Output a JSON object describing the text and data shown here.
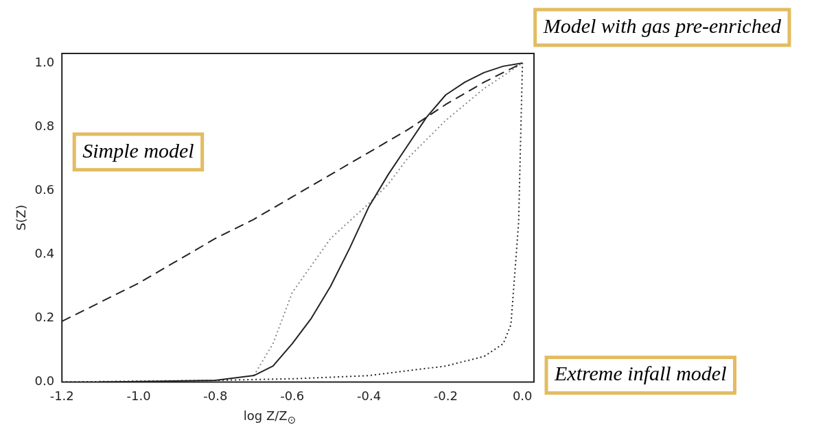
{
  "chart_data": {
    "type": "line",
    "xlabel": "log Z/Z$_{⊙}$",
    "ylabel": "S(Z)",
    "xlim": [
      -1.2,
      0.03
    ],
    "ylim": [
      0,
      1.03
    ],
    "xticks": [
      {
        "value": -1.2,
        "label": "-1.2"
      },
      {
        "value": -1.0,
        "label": "-1.0"
      },
      {
        "value": -0.8,
        "label": "-0.8"
      },
      {
        "value": -0.6,
        "label": "-0.6"
      },
      {
        "value": -0.4,
        "label": "-0.4"
      },
      {
        "value": -0.2,
        "label": "-0.2"
      },
      {
        "value": 0,
        "label": "0.0"
      }
    ],
    "yticks": [
      {
        "value": 0,
        "label": "0.0"
      },
      {
        "value": 0.2,
        "label": "0.2"
      },
      {
        "value": 0.4,
        "label": "0.4"
      },
      {
        "value": 0.6,
        "label": "0.6"
      },
      {
        "value": 0.8,
        "label": "0.8"
      },
      {
        "value": 1.0,
        "label": "1.0"
      }
    ],
    "grid": false,
    "legend": false,
    "marker": "none",
    "series": [
      {
        "color": "#222222",
        "line_style": "dashed",
        "x": [
          -1.2,
          -1.1,
          -1.0,
          -0.9,
          -0.8,
          -0.7,
          -0.6,
          -0.5,
          -0.4,
          -0.3,
          -0.2,
          -0.1,
          0
        ],
        "values": [
          0.19,
          0.25,
          0.31,
          0.38,
          0.45,
          0.51,
          0.58,
          0.65,
          0.72,
          0.79,
          0.87,
          0.94,
          1.0
        ]
      },
      {
        "color": "#222222",
        "line_style": "solid",
        "x": [
          -1.1,
          -0.8,
          -0.7,
          -0.65,
          -0.6,
          -0.55,
          -0.5,
          -0.45,
          -0.4,
          -0.35,
          -0.3,
          -0.25,
          -0.2,
          -0.15,
          -0.1,
          -0.05,
          0
        ],
        "values": [
          0,
          0.005,
          0.02,
          0.05,
          0.12,
          0.2,
          0.3,
          0.42,
          0.55,
          0.65,
          0.74,
          0.83,
          0.9,
          0.94,
          0.97,
          0.99,
          1.0
        ]
      },
      {
        "color": "#888888",
        "line_style": "dotted",
        "x": [
          -0.7,
          -0.65,
          -0.6,
          -0.5,
          -0.4,
          -0.35,
          -0.3,
          -0.2,
          -0.1,
          0
        ],
        "values": [
          0.02,
          0.12,
          0.28,
          0.45,
          0.56,
          0.62,
          0.7,
          0.82,
          0.92,
          1.0
        ]
      },
      {
        "color": "#222222",
        "line_style": "dotted",
        "x": [
          -1.2,
          -0.8,
          -0.6,
          -0.4,
          -0.2,
          -0.1,
          -0.05,
          -0.03,
          -0.01,
          0
        ],
        "values": [
          0,
          0.005,
          0.01,
          0.02,
          0.05,
          0.08,
          0.12,
          0.18,
          0.5,
          1.0
        ]
      }
    ],
    "annotations": [
      "Simple model",
      "Extreme infall model",
      "Model with gas pre-enriched"
    ]
  }
}
